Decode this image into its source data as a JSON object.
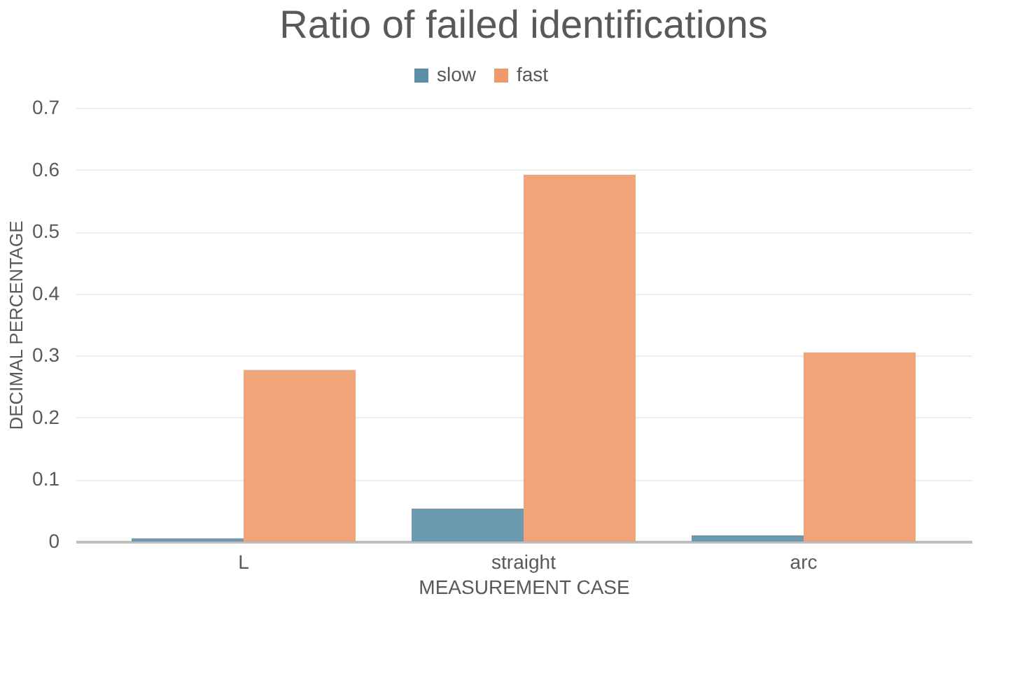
{
  "chart_data": {
    "type": "bar",
    "title": "Ratio of failed identifications",
    "xlabel": "MEASUREMENT CASE",
    "ylabel": "DECIMAL PERCENTAGE",
    "categories": [
      "L",
      "straight",
      "arc"
    ],
    "series": [
      {
        "name": "slow",
        "color": "#5b8fa8",
        "values": [
          0.005,
          0.053,
          0.01
        ]
      },
      {
        "name": "fast",
        "color": "#ee9a6c",
        "values": [
          0.277,
          0.592,
          0.305
        ]
      }
    ],
    "ylim": [
      0,
      0.7
    ],
    "yticks": [
      0,
      0.1,
      0.2,
      0.3,
      0.4,
      0.5,
      0.6,
      0.7
    ],
    "grid": "y",
    "legend": "top"
  }
}
